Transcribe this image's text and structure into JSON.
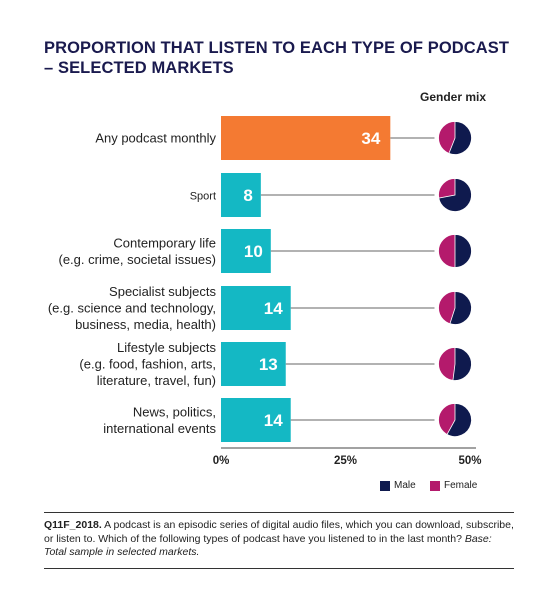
{
  "title_line1": "PROPORTION THAT LISTEN TO EACH TYPE OF PODCAST",
  "title_line2": "– SELECTED MARKETS",
  "gender_header": "Gender mix",
  "colors": {
    "orange": "#f47a32",
    "teal": "#14b8c4",
    "male": "#0f1a4e",
    "female": "#b41a6c"
  },
  "chart_data": {
    "type": "bar",
    "orientation": "horizontal",
    "categories": [
      [
        "Any podcast monthly"
      ],
      [
        "Sport"
      ],
      [
        "Contemporary life",
        "(e.g. crime, societal issues)"
      ],
      [
        "Specialist subjects",
        "(e.g. science and technology,",
        "business, media, health)"
      ],
      [
        "Lifestyle subjects",
        "(e.g. food, fashion, arts,",
        "literature, travel, fun)"
      ],
      [
        "News, politics,",
        "international events"
      ]
    ],
    "values": [
      34,
      8,
      10,
      14,
      13,
      14
    ],
    "value_labels": [
      "34",
      "8",
      "10",
      "14",
      "13",
      "14"
    ],
    "xlim": [
      0,
      50
    ],
    "x_ticks": [
      "0%",
      "25%",
      "50%"
    ],
    "gender_mix_male_share": [
      0.56,
      0.72,
      0.5,
      0.55,
      0.52,
      0.58
    ],
    "legend": [
      "Male",
      "Female"
    ]
  },
  "footnote": {
    "code": "Q11F_2018.",
    "text": " A podcast is an episodic series of digital audio files, which you can download, subscribe, or listen to. Which of the following types of podcast have you listened to in the last month? ",
    "base": "Base: Total sample in selected markets."
  }
}
